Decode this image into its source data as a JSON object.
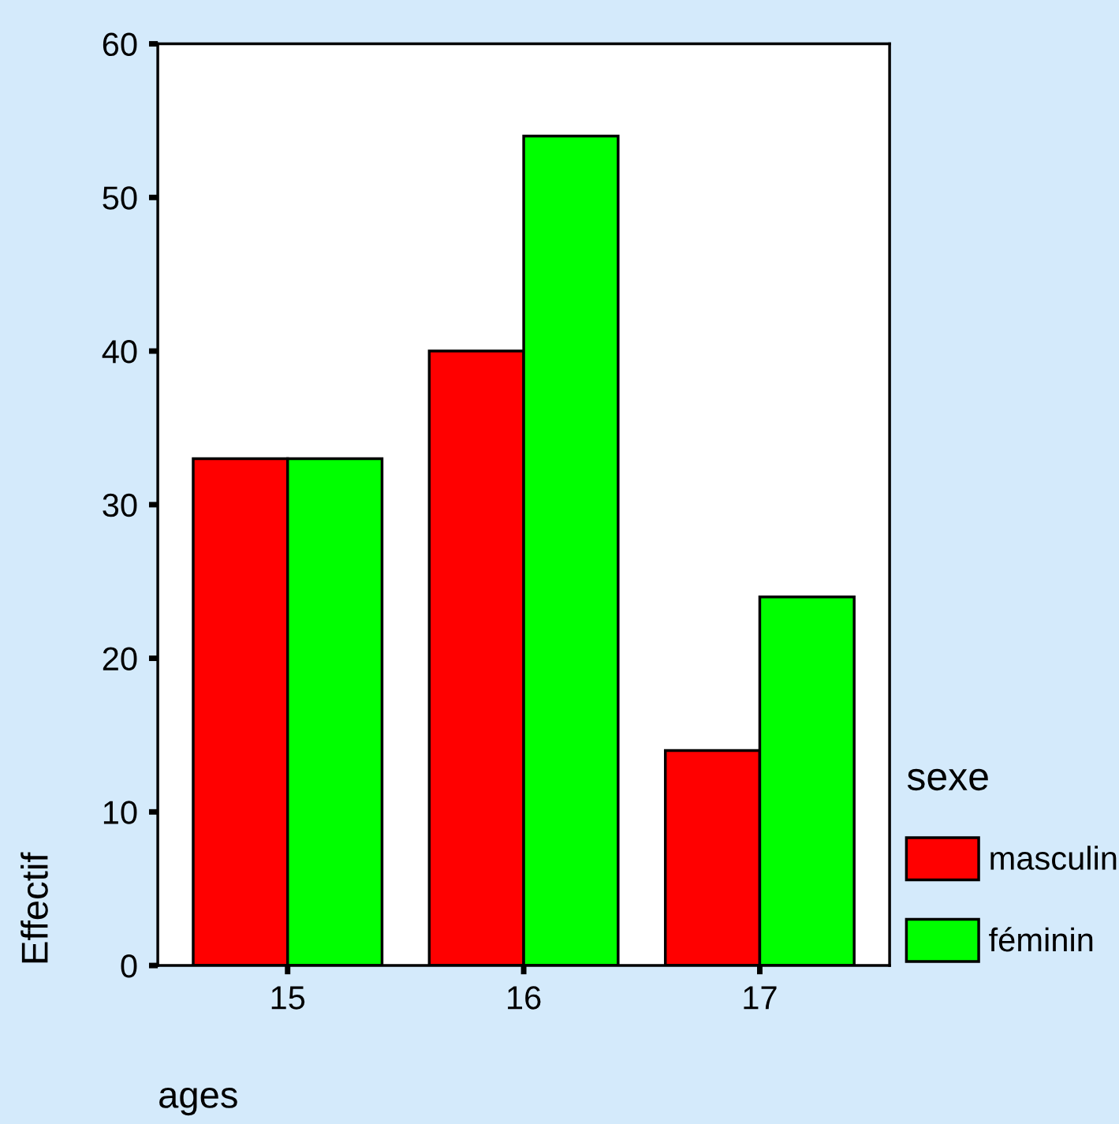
{
  "chart_data": {
    "type": "bar",
    "xlabel": "ages",
    "ylabel": "Effectif",
    "legend_title": "sexe",
    "categories": [
      "15",
      "16",
      "17"
    ],
    "series": [
      {
        "name": "masculin",
        "color": "#ff0000",
        "values": [
          33,
          40,
          14
        ]
      },
      {
        "name": "féminin",
        "color": "#00ff00",
        "values": [
          33,
          54,
          24
        ]
      }
    ],
    "ylim": [
      0,
      60
    ],
    "yticks": [
      0,
      10,
      20,
      30,
      40,
      50,
      60
    ],
    "grid": false,
    "legend": "bottom right"
  }
}
